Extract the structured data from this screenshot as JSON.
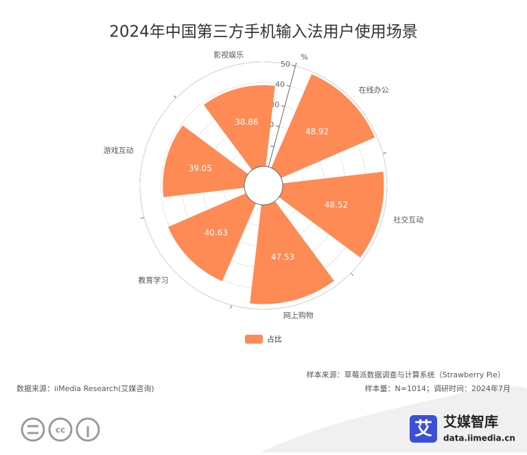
{
  "chart_data": {
    "type": "polar_bar",
    "title": "2024年中国第三方手机输入法用户使用场景",
    "categories": [
      "在线办公",
      "社交互动",
      "网上购物",
      "教育学习",
      "游戏互动",
      "影视娱乐"
    ],
    "series": [
      {
        "name": "占比",
        "color": "#fe8a55",
        "values": [
          48.92,
          48.52,
          47.53,
          40.63,
          39.05,
          38.86
        ]
      }
    ],
    "ylim": [
      0,
      50
    ],
    "yticks": [
      0,
      10,
      20,
      30,
      40,
      50
    ],
    "y_unit_label": "%",
    "grid": true,
    "legend": "bottom"
  },
  "footer": {
    "sample_source": "样本来源：草莓派数据调查与计算系统（Strawberry Pie）",
    "data_source": "数据来源：iiMedia Research(艾媒咨询)",
    "sample_info": "样本量：N=1014；调研时间：2024年7月"
  },
  "brand": {
    "icon": "艾",
    "name": "艾媒智库",
    "url": "data.iimedia.cn"
  }
}
